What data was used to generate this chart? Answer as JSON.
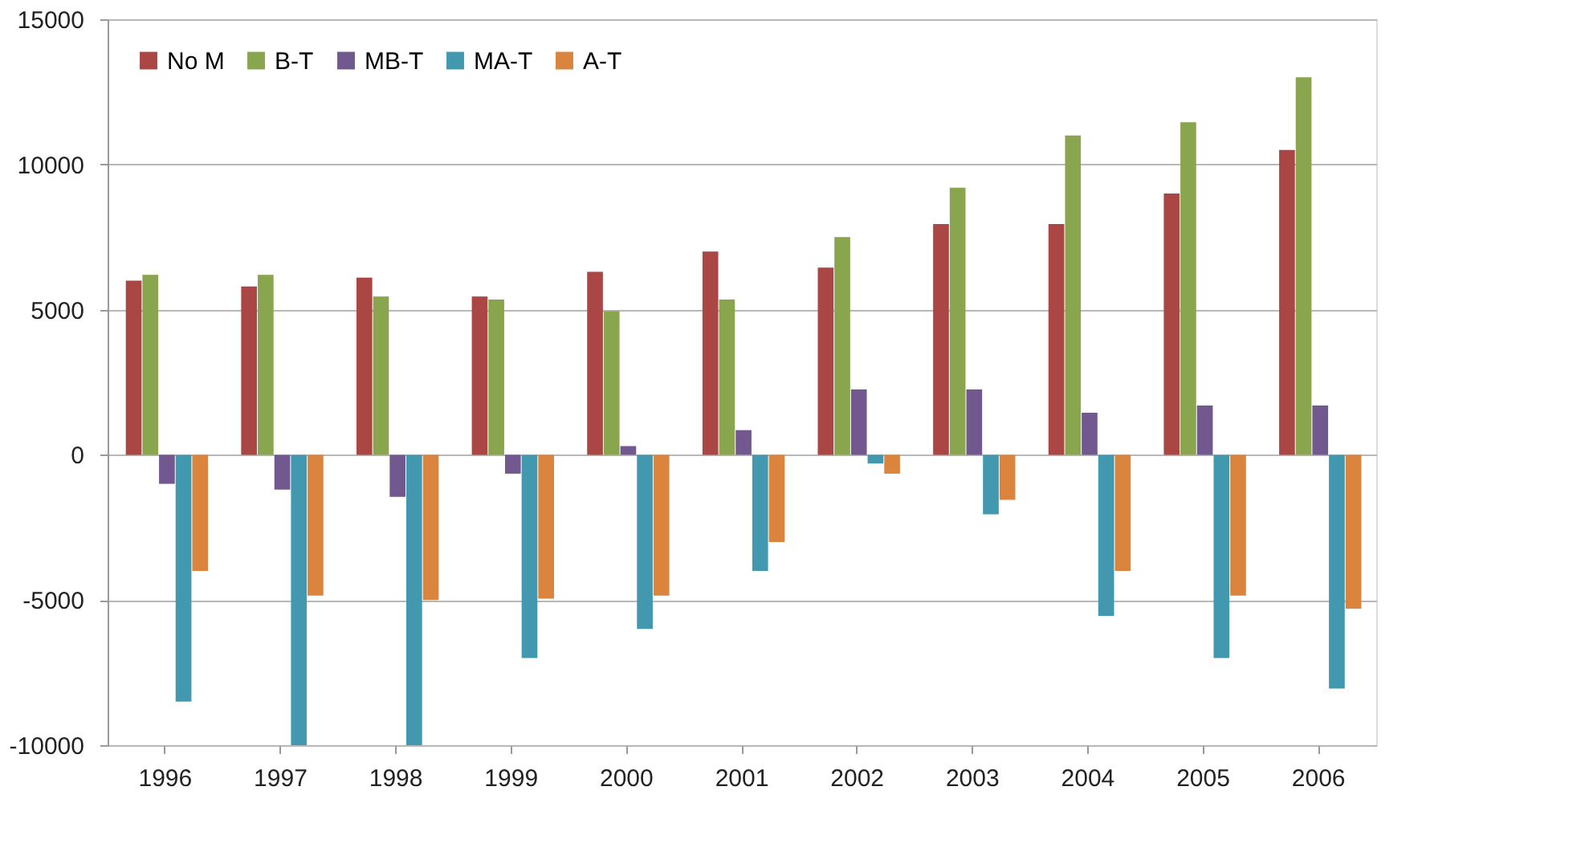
{
  "chart_data": {
    "type": "bar",
    "categories": [
      "1996",
      "1997",
      "1998",
      "1999",
      "2000",
      "2001",
      "2002",
      "2003",
      "2004",
      "2005",
      "2006"
    ],
    "series": [
      {
        "name": "No M",
        "color": "#aa4643",
        "values": [
          6000,
          5800,
          6100,
          5450,
          6300,
          7000,
          6450,
          7950,
          7950,
          9000,
          10500
        ]
      },
      {
        "name": "B-T",
        "color": "#89a54e",
        "values": [
          6200,
          6200,
          5450,
          5350,
          4950,
          5350,
          7500,
          9200,
          11000,
          11450,
          13000
        ]
      },
      {
        "name": "MB-T",
        "color": "#71588f",
        "values": [
          -1000,
          -1200,
          -1450,
          -650,
          300,
          850,
          2250,
          2250,
          1450,
          1700,
          1700
        ]
      },
      {
        "name": "MA-T",
        "color": "#4198af",
        "values": [
          -8500,
          -10000,
          -10000,
          -7000,
          -6000,
          -4000,
          -300,
          -2050,
          -5550,
          -7000,
          -8050
        ]
      },
      {
        "name": "A-T",
        "color": "#db843d",
        "values": [
          -4000,
          -4850,
          -5000,
          -4950,
          -4850,
          -3000,
          -650,
          -1550,
          -4000,
          -4850,
          -5300
        ]
      }
    ],
    "ylim": [
      -10000,
      15000
    ],
    "yticks": [
      -10000,
      -5000,
      0,
      5000,
      10000,
      15000
    ],
    "grid": "y",
    "legend": "top left"
  }
}
